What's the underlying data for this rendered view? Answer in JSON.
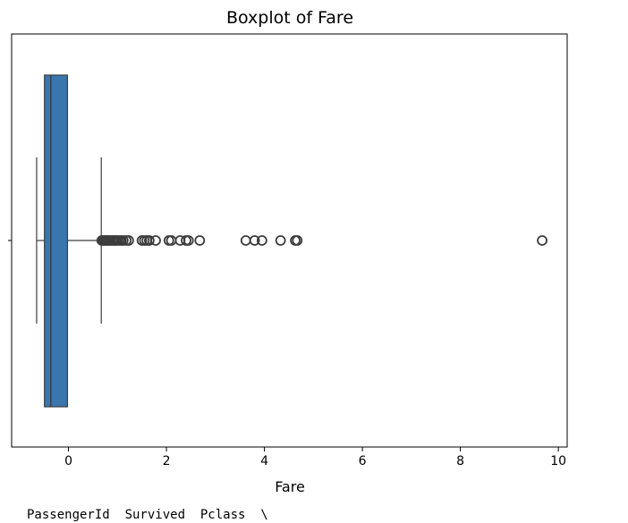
{
  "chart_data": {
    "type": "boxplot",
    "orientation": "horizontal",
    "title": "Boxplot of Fare",
    "xlabel": "Fare",
    "ylabel": "",
    "xlim": [
      -1.16,
      10.18
    ],
    "xticks": [
      0,
      2,
      4,
      6,
      8,
      10
    ],
    "xtick_labels": [
      "0",
      "2",
      "4",
      "6",
      "8",
      "10"
    ],
    "grid": false,
    "box": {
      "whisker_low": -0.65,
      "q1": -0.49,
      "median": -0.36,
      "q3": -0.02,
      "whisker_high": 0.67
    },
    "outliers": [
      0.68,
      0.71,
      0.74,
      0.77,
      0.8,
      0.83,
      0.86,
      0.9,
      0.93,
      0.97,
      1.0,
      1.04,
      1.08,
      1.12,
      1.18,
      1.23,
      1.5,
      1.55,
      1.6,
      1.65,
      1.78,
      2.05,
      2.1,
      2.28,
      2.4,
      2.45,
      2.68,
      3.62,
      3.8,
      3.95,
      4.33,
      4.63,
      4.67,
      9.67
    ],
    "colors": {
      "box_fill": "#3a75ad",
      "line": "#3d3d3d"
    }
  },
  "console": {
    "output_line": "PassengerId  Survived  Pclass  \\"
  }
}
